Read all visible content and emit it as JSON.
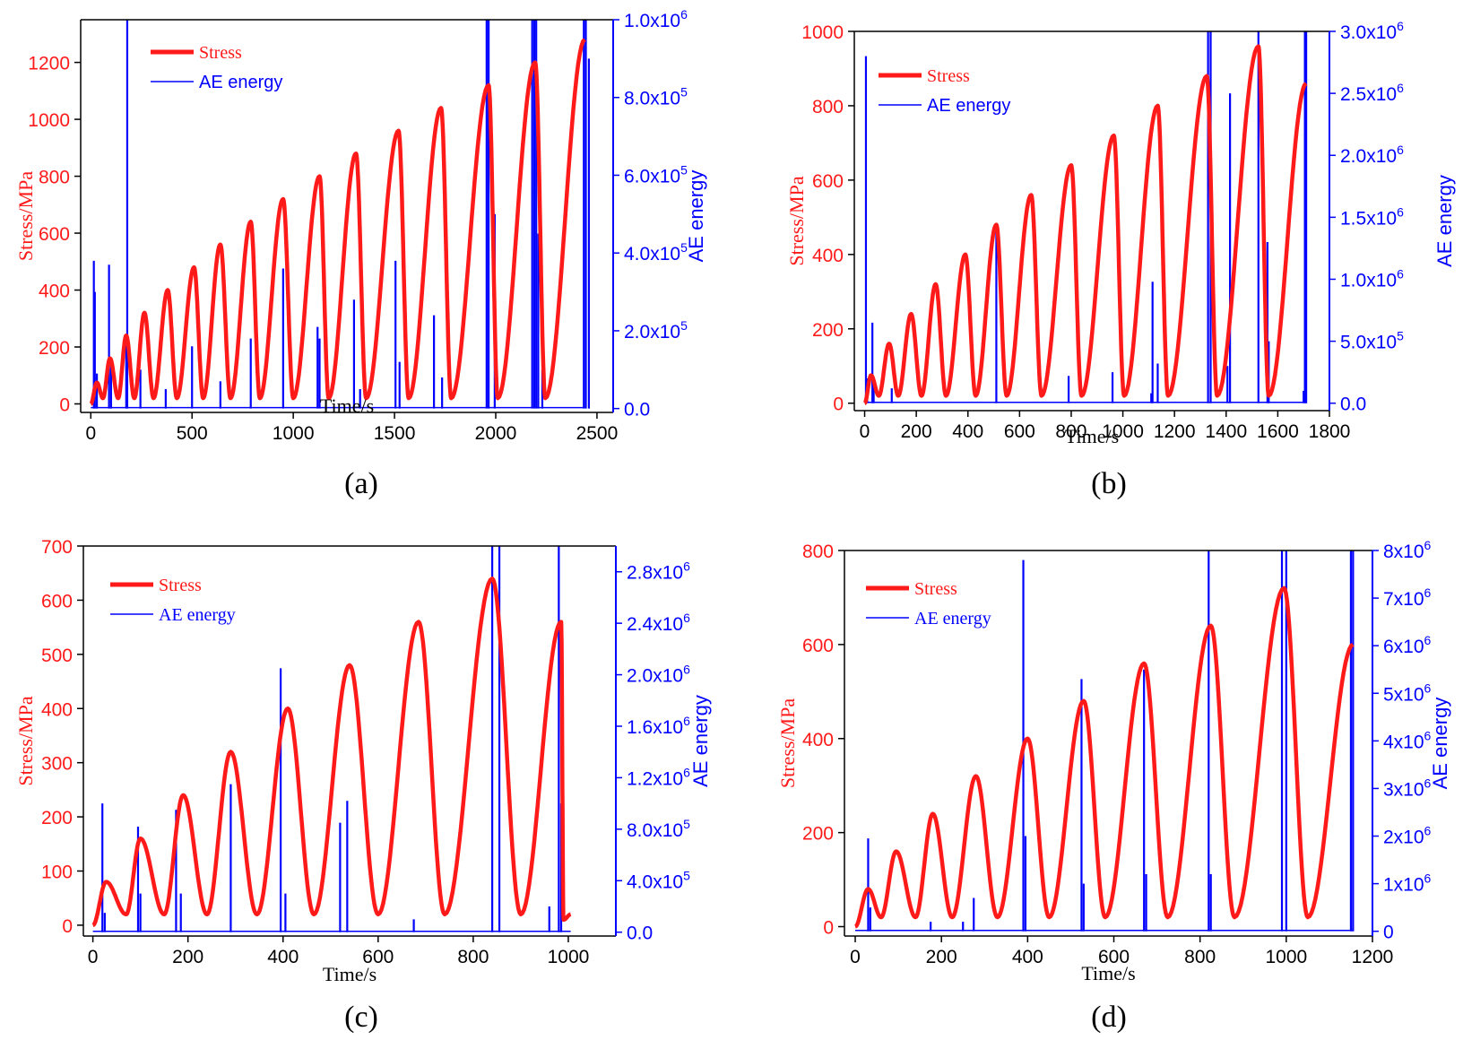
{
  "colors": {
    "stress": "#ff1a1a",
    "ae": "#0000ff",
    "axis": "#000000"
  },
  "chart_data": [
    {
      "type": "line",
      "panel_label": "(a)",
      "xlabel": "Time/s",
      "ylabel": "Stress/MPa",
      "y2label": "AE energy",
      "xlim": [
        -50,
        2580
      ],
      "ylim": [
        -30,
        1350
      ],
      "y2lim": [
        -0.01,
        1.0
      ],
      "xticks": [
        {
          "v": 0,
          "t": "0"
        },
        {
          "v": 500,
          "t": "500"
        },
        {
          "v": 1000,
          "t": "1000"
        },
        {
          "v": 1500,
          "t": "1500"
        },
        {
          "v": 2000,
          "t": "2000"
        },
        {
          "v": 2500,
          "t": "2500"
        }
      ],
      "yticks": [
        {
          "v": 0,
          "t": "0"
        },
        {
          "v": 200,
          "t": "200"
        },
        {
          "v": 400,
          "t": "400"
        },
        {
          "v": 600,
          "t": "600"
        },
        {
          "v": 800,
          "t": "800"
        },
        {
          "v": 1000,
          "t": "1000"
        },
        {
          "v": 1200,
          "t": "1200"
        }
      ],
      "y2ticks": [
        {
          "v": 0,
          "t": "0.0"
        },
        {
          "v": 0.2,
          "m": "2.0x10",
          "e": "5"
        },
        {
          "v": 0.4,
          "m": "4.0x10",
          "e": "5"
        },
        {
          "v": 0.6,
          "m": "6.0x10",
          "e": "5"
        },
        {
          "v": 0.8,
          "m": "8.0x10",
          "e": "5"
        },
        {
          "v": 1.0,
          "m": "1.0x10",
          "e": "6"
        }
      ],
      "legend": [
        "Stress",
        "AE energy"
      ],
      "stress_cycles": [
        {
          "t": 0,
          "v": 0
        },
        {
          "t": 30,
          "v": 75
        },
        {
          "t": 60,
          "v": 20
        },
        {
          "t": 95,
          "v": 160
        },
        {
          "t": 135,
          "v": 20
        },
        {
          "t": 175,
          "v": 240
        },
        {
          "t": 215,
          "v": 20
        },
        {
          "t": 265,
          "v": 320
        },
        {
          "t": 310,
          "v": 20
        },
        {
          "t": 380,
          "v": 400
        },
        {
          "t": 425,
          "v": 20
        },
        {
          "t": 510,
          "v": 480
        },
        {
          "t": 555,
          "v": 20
        },
        {
          "t": 640,
          "v": 560
        },
        {
          "t": 690,
          "v": 20
        },
        {
          "t": 790,
          "v": 640
        },
        {
          "t": 835,
          "v": 20
        },
        {
          "t": 950,
          "v": 720
        },
        {
          "t": 1000,
          "v": 20
        },
        {
          "t": 1130,
          "v": 800
        },
        {
          "t": 1175,
          "v": 20
        },
        {
          "t": 1310,
          "v": 880
        },
        {
          "t": 1360,
          "v": 20
        },
        {
          "t": 1520,
          "v": 960
        },
        {
          "t": 1570,
          "v": 20
        },
        {
          "t": 1730,
          "v": 1040
        },
        {
          "t": 1780,
          "v": 20
        },
        {
          "t": 1965,
          "v": 1120
        },
        {
          "t": 2010,
          "v": 20
        },
        {
          "t": 2195,
          "v": 1200
        },
        {
          "t": 2245,
          "v": 20
        },
        {
          "t": 2440,
          "v": 1280
        }
      ],
      "ae_spikes": [
        {
          "t": 15,
          "v": 0.38
        },
        {
          "t": 20,
          "v": 0.3
        },
        {
          "t": 30,
          "v": 0.09
        },
        {
          "t": 90,
          "v": 0.37
        },
        {
          "t": 100,
          "v": 0.12
        },
        {
          "t": 175,
          "v": 0.18
        },
        {
          "t": 180,
          "v": 1.0
        },
        {
          "t": 245,
          "v": 0.1
        },
        {
          "t": 370,
          "v": 0.05
        },
        {
          "t": 500,
          "v": 0.16
        },
        {
          "t": 640,
          "v": 0.07
        },
        {
          "t": 790,
          "v": 0.18
        },
        {
          "t": 950,
          "v": 0.36
        },
        {
          "t": 1120,
          "v": 0.21
        },
        {
          "t": 1130,
          "v": 0.18
        },
        {
          "t": 1300,
          "v": 0.28
        },
        {
          "t": 1330,
          "v": 0.05
        },
        {
          "t": 1505,
          "v": 0.38
        },
        {
          "t": 1525,
          "v": 0.12
        },
        {
          "t": 1695,
          "v": 0.24
        },
        {
          "t": 1735,
          "v": 0.08
        },
        {
          "t": 1955,
          "v": 1.0
        },
        {
          "t": 1965,
          "v": 1.0
        },
        {
          "t": 1995,
          "v": 0.5
        },
        {
          "t": 2180,
          "v": 1.0
        },
        {
          "t": 2190,
          "v": 1.0
        },
        {
          "t": 2200,
          "v": 1.0
        },
        {
          "t": 2210,
          "v": 0.45
        },
        {
          "t": 2230,
          "v": 0.1
        },
        {
          "t": 2435,
          "v": 1.0
        },
        {
          "t": 2445,
          "v": 1.0
        },
        {
          "t": 2460,
          "v": 0.9
        }
      ]
    },
    {
      "type": "line",
      "panel_label": "(b)",
      "xlabel": "Time/s",
      "ylabel": "Stress/MPa",
      "y2label": "AE energy",
      "xlim": [
        -40,
        1800
      ],
      "ylim": [
        -20,
        1000
      ],
      "y2lim": [
        -0.06,
        3.0
      ],
      "xticks": [
        {
          "v": 0,
          "t": "0"
        },
        {
          "v": 200,
          "t": "200"
        },
        {
          "v": 400,
          "t": "400"
        },
        {
          "v": 600,
          "t": "600"
        },
        {
          "v": 800,
          "t": "800"
        },
        {
          "v": 1000,
          "t": "1000"
        },
        {
          "v": 1200,
          "t": "1200"
        },
        {
          "v": 1400,
          "t": "1400"
        },
        {
          "v": 1600,
          "t": "1600"
        },
        {
          "v": 1800,
          "t": "1800"
        }
      ],
      "yticks": [
        {
          "v": 0,
          "t": "0"
        },
        {
          "v": 200,
          "t": "200"
        },
        {
          "v": 400,
          "t": "400"
        },
        {
          "v": 600,
          "t": "600"
        },
        {
          "v": 800,
          "t": "800"
        },
        {
          "v": 1000,
          "t": "1000"
        }
      ],
      "y2ticks": [
        {
          "v": 0,
          "t": "0.0"
        },
        {
          "v": 0.5,
          "m": "5.0x10",
          "e": "5"
        },
        {
          "v": 1.0,
          "m": "1.0x10",
          "e": "6"
        },
        {
          "v": 1.5,
          "m": "1.5x10",
          "e": "6"
        },
        {
          "v": 2.0,
          "m": "2.0x10",
          "e": "6"
        },
        {
          "v": 2.5,
          "m": "2.5x10",
          "e": "6"
        },
        {
          "v": 3.0,
          "m": "3.0x10",
          "e": "6"
        }
      ],
      "legend": [
        "Stress",
        "AE energy"
      ],
      "stress_cycles": [
        {
          "t": 0,
          "v": 0
        },
        {
          "t": 25,
          "v": 75
        },
        {
          "t": 55,
          "v": 20
        },
        {
          "t": 95,
          "v": 160
        },
        {
          "t": 130,
          "v": 20
        },
        {
          "t": 180,
          "v": 240
        },
        {
          "t": 220,
          "v": 20
        },
        {
          "t": 275,
          "v": 320
        },
        {
          "t": 315,
          "v": 20
        },
        {
          "t": 390,
          "v": 400
        },
        {
          "t": 430,
          "v": 20
        },
        {
          "t": 510,
          "v": 480
        },
        {
          "t": 550,
          "v": 20
        },
        {
          "t": 645,
          "v": 560
        },
        {
          "t": 685,
          "v": 20
        },
        {
          "t": 800,
          "v": 640
        },
        {
          "t": 840,
          "v": 20
        },
        {
          "t": 965,
          "v": 720
        },
        {
          "t": 1005,
          "v": 20
        },
        {
          "t": 1135,
          "v": 800
        },
        {
          "t": 1175,
          "v": 20
        },
        {
          "t": 1325,
          "v": 880
        },
        {
          "t": 1365,
          "v": 20
        },
        {
          "t": 1525,
          "v": 960
        },
        {
          "t": 1565,
          "v": 20
        },
        {
          "t": 1710,
          "v": 860
        }
      ],
      "ae_spikes": [
        {
          "t": 5,
          "v": 2.8
        },
        {
          "t": 10,
          "v": 0.2
        },
        {
          "t": 30,
          "v": 0.65
        },
        {
          "t": 35,
          "v": 0.2
        },
        {
          "t": 105,
          "v": 0.12
        },
        {
          "t": 510,
          "v": 1.45
        },
        {
          "t": 790,
          "v": 0.22
        },
        {
          "t": 960,
          "v": 0.25
        },
        {
          "t": 1110,
          "v": 0.08
        },
        {
          "t": 1115,
          "v": 0.98
        },
        {
          "t": 1135,
          "v": 0.32
        },
        {
          "t": 1330,
          "v": 3.0
        },
        {
          "t": 1340,
          "v": 3.0
        },
        {
          "t": 1405,
          "v": 0.3
        },
        {
          "t": 1415,
          "v": 2.5
        },
        {
          "t": 1525,
          "v": 3.0
        },
        {
          "t": 1560,
          "v": 1.3
        },
        {
          "t": 1565,
          "v": 0.5
        },
        {
          "t": 1700,
          "v": 0.1
        },
        {
          "t": 1705,
          "v": 3.0
        },
        {
          "t": 1710,
          "v": 3.0
        }
      ]
    },
    {
      "type": "line",
      "panel_label": "(c)",
      "xlabel": "Time/s",
      "ylabel": "Stress/MPa",
      "y2label": "AE energy",
      "xlim": [
        -20,
        1100
      ],
      "ylim": [
        -20,
        700
      ],
      "y2lim": [
        -0.03,
        3.0
      ],
      "xticks": [
        {
          "v": 0,
          "t": "0"
        },
        {
          "v": 200,
          "t": "200"
        },
        {
          "v": 400,
          "t": "400"
        },
        {
          "v": 600,
          "t": "600"
        },
        {
          "v": 800,
          "t": "800"
        },
        {
          "v": 1000,
          "t": "1000"
        }
      ],
      "yticks": [
        {
          "v": 0,
          "t": "0"
        },
        {
          "v": 100,
          "t": "100"
        },
        {
          "v": 200,
          "t": "200"
        },
        {
          "v": 300,
          "t": "300"
        },
        {
          "v": 400,
          "t": "400"
        },
        {
          "v": 500,
          "t": "500"
        },
        {
          "v": 600,
          "t": "600"
        },
        {
          "v": 700,
          "t": "700"
        }
      ],
      "y2ticks": [
        {
          "v": 0,
          "t": "0.0"
        },
        {
          "v": 0.4,
          "m": "4.0x10",
          "e": "5"
        },
        {
          "v": 0.8,
          "m": "8.0x10",
          "e": "5"
        },
        {
          "v": 1.2,
          "m": "1.2x10",
          "e": "6"
        },
        {
          "v": 1.6,
          "m": "1.6x10",
          "e": "6"
        },
        {
          "v": 2.0,
          "m": "2.0x10",
          "e": "6"
        },
        {
          "v": 2.4,
          "m": "2.4x10",
          "e": "6"
        },
        {
          "v": 2.8,
          "m": "2.8x10",
          "e": "6"
        }
      ],
      "legend": [
        "Stress",
        "AE energy"
      ],
      "stress_cycles": [
        {
          "t": 0,
          "v": 0
        },
        {
          "t": 28,
          "v": 80
        },
        {
          "t": 70,
          "v": 20
        },
        {
          "t": 100,
          "v": 160
        },
        {
          "t": 150,
          "v": 20
        },
        {
          "t": 190,
          "v": 240
        },
        {
          "t": 240,
          "v": 20
        },
        {
          "t": 290,
          "v": 320
        },
        {
          "t": 345,
          "v": 20
        },
        {
          "t": 410,
          "v": 400
        },
        {
          "t": 465,
          "v": 20
        },
        {
          "t": 540,
          "v": 480
        },
        {
          "t": 600,
          "v": 20
        },
        {
          "t": 685,
          "v": 560
        },
        {
          "t": 740,
          "v": 20
        },
        {
          "t": 840,
          "v": 640
        },
        {
          "t": 900,
          "v": 20
        },
        {
          "t": 985,
          "v": 560
        },
        {
          "t": 990,
          "v": 10
        },
        {
          "t": 1005,
          "v": 20
        }
      ],
      "ae_spikes": [
        {
          "t": 20,
          "v": 1.0
        },
        {
          "t": 25,
          "v": 0.15
        },
        {
          "t": 95,
          "v": 0.82
        },
        {
          "t": 100,
          "v": 0.3
        },
        {
          "t": 175,
          "v": 0.95
        },
        {
          "t": 185,
          "v": 0.3
        },
        {
          "t": 290,
          "v": 1.15
        },
        {
          "t": 395,
          "v": 2.05
        },
        {
          "t": 405,
          "v": 0.3
        },
        {
          "t": 520,
          "v": 0.85
        },
        {
          "t": 535,
          "v": 1.02
        },
        {
          "t": 675,
          "v": 0.1
        },
        {
          "t": 840,
          "v": 3.0
        },
        {
          "t": 855,
          "v": 3.0
        },
        {
          "t": 960,
          "v": 0.2
        },
        {
          "t": 980,
          "v": 3.0
        },
        {
          "t": 985,
          "v": 1.0
        }
      ]
    },
    {
      "type": "line",
      "panel_label": "(d)",
      "xlabel": "Time/s",
      "ylabel": "Stress/MPa",
      "y2label": "AE energy",
      "xlim": [
        -25,
        1200
      ],
      "ylim": [
        -20,
        800
      ],
      "y2lim": [
        -0.1,
        8.0
      ],
      "xticks": [
        {
          "v": 0,
          "t": "0"
        },
        {
          "v": 200,
          "t": "200"
        },
        {
          "v": 400,
          "t": "400"
        },
        {
          "v": 600,
          "t": "600"
        },
        {
          "v": 800,
          "t": "800"
        },
        {
          "v": 1000,
          "t": "1000"
        },
        {
          "v": 1200,
          "t": "1200"
        }
      ],
      "yticks": [
        {
          "v": 0,
          "t": "0"
        },
        {
          "v": 200,
          "t": "200"
        },
        {
          "v": 400,
          "t": "400"
        },
        {
          "v": 600,
          "t": "600"
        },
        {
          "v": 800,
          "t": "800"
        }
      ],
      "y2ticks": [
        {
          "v": 0,
          "t": "0"
        },
        {
          "v": 1,
          "m": "1x10",
          "e": "6"
        },
        {
          "v": 2,
          "m": "2x10",
          "e": "6"
        },
        {
          "v": 3,
          "m": "3x10",
          "e": "6"
        },
        {
          "v": 4,
          "m": "4x10",
          "e": "6"
        },
        {
          "v": 5,
          "m": "5x10",
          "e": "6"
        },
        {
          "v": 6,
          "m": "6x10",
          "e": "6"
        },
        {
          "v": 7,
          "m": "7x10",
          "e": "6"
        },
        {
          "v": 8,
          "m": "8x10",
          "e": "6"
        }
      ],
      "legend": [
        "Stress",
        "AE energy"
      ],
      "stress_cycles": [
        {
          "t": 0,
          "v": 0
        },
        {
          "t": 30,
          "v": 80
        },
        {
          "t": 60,
          "v": 20
        },
        {
          "t": 95,
          "v": 160
        },
        {
          "t": 140,
          "v": 20
        },
        {
          "t": 180,
          "v": 240
        },
        {
          "t": 225,
          "v": 20
        },
        {
          "t": 280,
          "v": 320
        },
        {
          "t": 330,
          "v": 20
        },
        {
          "t": 400,
          "v": 400
        },
        {
          "t": 450,
          "v": 20
        },
        {
          "t": 530,
          "v": 480
        },
        {
          "t": 580,
          "v": 20
        },
        {
          "t": 670,
          "v": 560
        },
        {
          "t": 725,
          "v": 20
        },
        {
          "t": 825,
          "v": 640
        },
        {
          "t": 880,
          "v": 20
        },
        {
          "t": 995,
          "v": 720
        },
        {
          "t": 1050,
          "v": 20
        },
        {
          "t": 1155,
          "v": 600
        }
      ],
      "ae_spikes": [
        {
          "t": 30,
          "v": 1.95
        },
        {
          "t": 35,
          "v": 0.5
        },
        {
          "t": 175,
          "v": 0.2
        },
        {
          "t": 250,
          "v": 0.2
        },
        {
          "t": 275,
          "v": 0.7
        },
        {
          "t": 390,
          "v": 7.8
        },
        {
          "t": 395,
          "v": 2.0
        },
        {
          "t": 525,
          "v": 5.3
        },
        {
          "t": 530,
          "v": 1.0
        },
        {
          "t": 670,
          "v": 5.5
        },
        {
          "t": 675,
          "v": 1.2
        },
        {
          "t": 820,
          "v": 8.0
        },
        {
          "t": 825,
          "v": 1.2
        },
        {
          "t": 990,
          "v": 8.0
        },
        {
          "t": 1000,
          "v": 8.0
        },
        {
          "t": 1150,
          "v": 8.0
        },
        {
          "t": 1155,
          "v": 8.0
        }
      ]
    }
  ]
}
